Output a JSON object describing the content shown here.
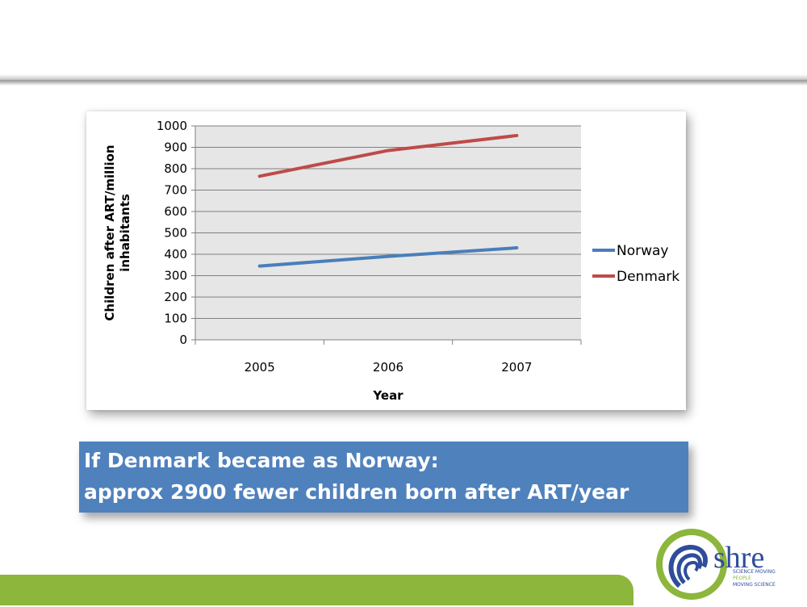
{
  "callout": {
    "line1": "If Denmark became as Norway:",
    "line2": "approx 2900 fewer children born after ART/year"
  },
  "logo": {
    "wordmark": "shre",
    "tagline": [
      "SCIENCE MOVING",
      "PEOPLE",
      "MOVING SCIENCE"
    ],
    "tagline_colors": [
      "#2e4d9a",
      "#8cb63c",
      "#2e4d9a"
    ]
  },
  "colors": {
    "accent_bar": "#8cb63c",
    "callout_bg": "#4f81bd",
    "plot_bg": "#e6e6e6"
  },
  "chart_data": {
    "type": "line",
    "title": "",
    "xlabel": "Year",
    "ylabel": "Children after ART/million inhabitants",
    "categories": [
      "2005",
      "2006",
      "2007"
    ],
    "ylim": [
      0,
      1000
    ],
    "yticks": [
      0,
      100,
      200,
      300,
      400,
      500,
      600,
      700,
      800,
      900,
      1000
    ],
    "grid": true,
    "legend": "right",
    "series": [
      {
        "name": "Norway",
        "values": [
          345,
          390,
          430
        ],
        "color": "#4a7ebb"
      },
      {
        "name": "Denmark",
        "values": [
          765,
          885,
          955
        ],
        "color": "#be4b48"
      }
    ]
  }
}
